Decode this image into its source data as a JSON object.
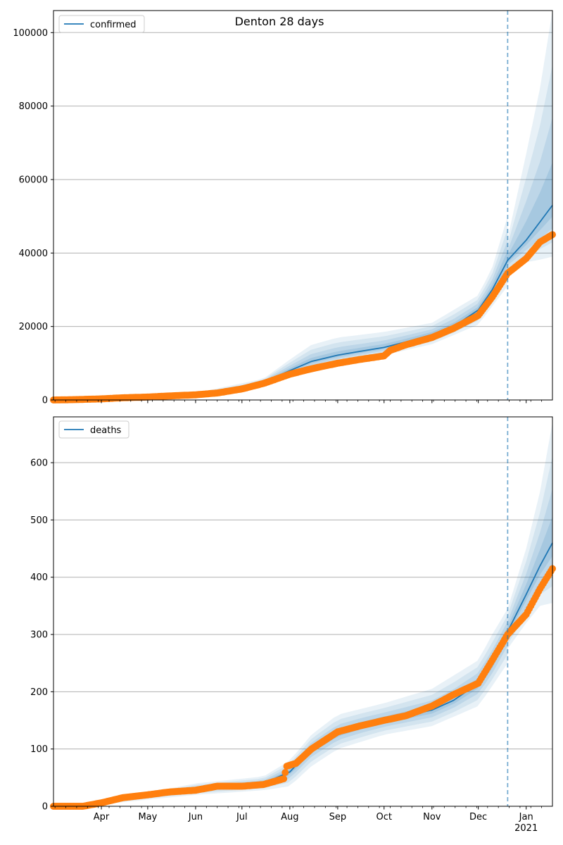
{
  "figure": {
    "title": "Denton 28 days"
  },
  "colors": {
    "model_line": "#1f77b4",
    "band": "#1f77b4",
    "observed": "#ff7f0e",
    "grid": "#b0b0b0",
    "forecast_line": "#1f77b4"
  },
  "chart_data": [
    {
      "type": "line",
      "title": "Denton 28 days",
      "xlabel": "",
      "ylabel": "",
      "x_axis": {
        "type": "date",
        "range": [
          "2020-03-01",
          "2021-01-18"
        ]
      },
      "ylim": [
        0,
        106000
      ],
      "yticks": [
        0,
        20000,
        40000,
        60000,
        80000,
        100000
      ],
      "ytick_labels": [
        "0",
        "20000",
        "40000",
        "60000",
        "80000",
        "100000"
      ],
      "xtick_labels": [],
      "grid": "horizontal",
      "legend": {
        "position": "top-left",
        "entries": [
          "confirmed"
        ]
      },
      "forecast_start": "2020-12-20",
      "series": [
        {
          "name": "confirmed",
          "kind": "model-line",
          "x": [
            "2020-03-01",
            "2020-04-01",
            "2020-05-01",
            "2020-06-01",
            "2020-07-01",
            "2020-07-15",
            "2020-08-01",
            "2020-08-15",
            "2020-09-01",
            "2020-09-15",
            "2020-10-01",
            "2020-10-15",
            "2020-11-01",
            "2020-11-15",
            "2020-12-01",
            "2020-12-10",
            "2020-12-20",
            "2021-01-01",
            "2021-01-10",
            "2021-01-18"
          ],
          "values": [
            0,
            300,
            800,
            1500,
            3000,
            4800,
            8000,
            10500,
            12200,
            13200,
            14300,
            15800,
            17800,
            20000,
            24500,
            30000,
            38000,
            43500,
            48500,
            53000
          ]
        },
        {
          "name": "",
          "kind": "observed",
          "x": [
            "2020-03-01",
            "2020-03-15",
            "2020-04-01",
            "2020-04-15",
            "2020-05-01",
            "2020-05-15",
            "2020-06-01",
            "2020-06-15",
            "2020-07-01",
            "2020-07-15",
            "2020-08-01",
            "2020-08-15",
            "2020-09-01",
            "2020-09-15",
            "2020-10-01",
            "2020-10-05",
            "2020-10-15",
            "2020-11-01",
            "2020-11-15",
            "2020-12-01",
            "2020-12-10",
            "2020-12-20",
            "2021-01-01",
            "2021-01-10",
            "2021-01-18"
          ],
          "values": [
            0,
            100,
            300,
            600,
            800,
            1100,
            1400,
            1900,
            3000,
            4500,
            7000,
            8500,
            10000,
            11000,
            12000,
            13500,
            15000,
            17000,
            19500,
            23000,
            28000,
            34500,
            38500,
            43000,
            45000
          ]
        }
      ],
      "bands": [
        {
          "x": [
            "2020-03-01",
            "2020-06-01",
            "2020-07-15",
            "2020-08-01",
            "2020-08-15",
            "2020-09-01",
            "2020-10-01",
            "2020-11-01",
            "2020-12-01",
            "2020-12-10",
            "2020-12-20"
          ],
          "lower": [
            0,
            1200,
            3900,
            6000,
            8200,
            10000,
            12200,
            15200,
            20500,
            25500,
            31000
          ],
          "upper": [
            0,
            1900,
            5800,
            11000,
            15000,
            17000,
            18500,
            21000,
            28500,
            36000,
            50000
          ]
        },
        {
          "x": [
            "2020-12-20",
            "2021-01-01",
            "2021-01-10",
            "2021-01-18"
          ],
          "lower": [
            35000,
            37500,
            38200,
            39000
          ],
          "upper": [
            44000,
            67000,
            85000,
            106000
          ]
        }
      ]
    },
    {
      "type": "line",
      "title": "",
      "xlabel": "",
      "ylabel": "",
      "x_axis": {
        "type": "date",
        "range": [
          "2020-03-01",
          "2021-01-18"
        ]
      },
      "ylim": [
        0,
        680
      ],
      "yticks": [
        0,
        100,
        200,
        300,
        400,
        500,
        600
      ],
      "ytick_labels": [
        "0",
        "100",
        "200",
        "300",
        "400",
        "500",
        "600"
      ],
      "xtick_labels": [
        "Apr",
        "May",
        "Jun",
        "Jul",
        "Aug",
        "Sep",
        "Oct",
        "Nov",
        "Dec",
        "Jan\n2021"
      ],
      "grid": "horizontal",
      "legend": {
        "position": "top-left",
        "entries": [
          "deaths"
        ]
      },
      "forecast_start": "2020-12-20",
      "series": [
        {
          "name": "deaths",
          "kind": "model-line",
          "x": [
            "2020-03-01",
            "2020-03-20",
            "2020-04-01",
            "2020-05-01",
            "2020-06-01",
            "2020-07-01",
            "2020-07-15",
            "2020-08-01",
            "2020-08-15",
            "2020-09-01",
            "2020-09-15",
            "2020-10-01",
            "2020-11-01",
            "2020-11-15",
            "2020-12-01",
            "2020-12-10",
            "2020-12-20",
            "2021-01-01",
            "2021-01-10",
            "2021-01-18"
          ],
          "values": [
            0,
            0,
            6,
            20,
            30,
            37,
            40,
            60,
            100,
            128,
            140,
            150,
            168,
            185,
            215,
            250,
            305,
            370,
            420,
            460
          ]
        },
        {
          "name": "",
          "kind": "observed",
          "x": [
            "2020-03-01",
            "2020-03-20",
            "2020-04-01",
            "2020-04-15",
            "2020-05-01",
            "2020-05-15",
            "2020-06-01",
            "2020-06-15",
            "2020-07-01",
            "2020-07-15",
            "2020-07-28",
            "2020-07-30",
            "2020-08-05",
            "2020-08-15",
            "2020-09-01",
            "2020-09-15",
            "2020-10-01",
            "2020-10-15",
            "2020-11-01",
            "2020-11-15",
            "2020-12-01",
            "2020-12-10",
            "2020-12-20",
            "2021-01-01",
            "2021-01-10",
            "2021-01-18"
          ],
          "values": [
            0,
            0,
            6,
            15,
            20,
            25,
            28,
            35,
            35,
            38,
            48,
            70,
            75,
            100,
            130,
            140,
            150,
            158,
            175,
            195,
            215,
            255,
            300,
            335,
            380,
            415
          ]
        }
      ],
      "bands": [
        {
          "x": [
            "2020-03-01",
            "2020-03-20",
            "2020-06-01",
            "2020-07-15",
            "2020-08-01",
            "2020-08-15",
            "2020-09-01",
            "2020-10-01",
            "2020-11-01",
            "2020-12-01",
            "2020-12-10",
            "2020-12-20"
          ],
          "lower": [
            0,
            0,
            20,
            28,
            35,
            70,
            100,
            125,
            140,
            175,
            210,
            250
          ],
          "upper": [
            0,
            0,
            40,
            52,
            80,
            125,
            160,
            180,
            205,
            255,
            300,
            345
          ]
        },
        {
          "x": [
            "2020-12-20",
            "2021-01-01",
            "2021-01-10",
            "2021-01-18"
          ],
          "lower": [
            275,
            320,
            350,
            355
          ],
          "upper": [
            345,
            450,
            550,
            670
          ]
        }
      ]
    }
  ]
}
